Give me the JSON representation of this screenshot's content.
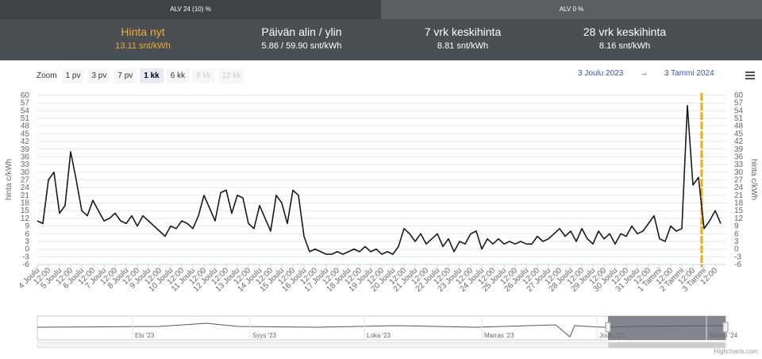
{
  "tabs": [
    "ALV 24 (10) %",
    "ALV 0 %"
  ],
  "stats": [
    {
      "label": "Hinta nyt",
      "value": "13.11 snt/kWh"
    },
    {
      "label": "Päivän alin / ylin",
      "value": "5.86 / 59.90 snt/kWh"
    },
    {
      "label": "7 vrk keskihinta",
      "value": "8.81 snt/kWh"
    },
    {
      "label": "28 vrk keskihinta",
      "value": "8.16 snt/kWh"
    }
  ],
  "zoom": {
    "label": "Zoom",
    "buttons": [
      "1 pv",
      "3 pv",
      "7 pv",
      "1 kk",
      "6 kk",
      "9 kk",
      "12 kk"
    ]
  },
  "range": {
    "from": "3 Joulu 2023",
    "arrow": "→",
    "to": "3 Tammi 2024"
  },
  "chart_data": {
    "type": "line",
    "categories": [
      "4 Joulu",
      null,
      "12:00",
      null,
      "5 Joulu",
      null,
      "12:00",
      null,
      "6 Joulu",
      null,
      "12:00",
      null,
      "7 Joulu",
      null,
      "12:00",
      null,
      "8 Joulu",
      null,
      "12:00",
      null,
      "9 Joulu",
      null,
      "12:00",
      null,
      "10 Joulu",
      null,
      "12:00",
      null,
      "11 Joulu",
      null,
      "12:00",
      null,
      "12 Joulu",
      null,
      "12:00",
      null,
      "13 Joulu",
      null,
      "12:00",
      null,
      "14 Joulu",
      null,
      "12:00",
      null,
      "15 Joulu",
      null,
      "12:00",
      null,
      "16 Joulu",
      null,
      "12:00",
      null,
      "17 Joulu",
      null,
      "12:00",
      null,
      "18 Joulu",
      null,
      "12:00",
      null,
      "19 Joulu",
      null,
      "12:00",
      null,
      "20 Joulu",
      null,
      "12:00",
      null,
      "21 Joulu",
      null,
      "12:00",
      null,
      "22 Joulu",
      null,
      "12:00",
      null,
      "23 Joulu",
      null,
      "12:00",
      null,
      "24 Joulu",
      null,
      "12:00",
      null,
      "25 Joulu",
      null,
      "12:00",
      null,
      "26 Joulu",
      null,
      "12:00",
      null,
      "27 Joulu",
      null,
      "12:00",
      null,
      "28 Joulu",
      null,
      "12:00",
      null,
      "29 Joulu",
      null,
      "12:00",
      null,
      "30 Joulu",
      null,
      "12:00",
      null,
      "31 Joulu",
      null,
      "12:00",
      null,
      "1 Tammi",
      null,
      "12:00",
      null,
      "2 Tammi",
      null,
      "12:00",
      null,
      "3 Tammi",
      null,
      "12:00",
      null
    ],
    "values": [
      11,
      10,
      27,
      30,
      14,
      17,
      38,
      27,
      15,
      13,
      19,
      15,
      11,
      12,
      14,
      11,
      10,
      13,
      9,
      13,
      11,
      9,
      7,
      5,
      9,
      8,
      11,
      10,
      8,
      13,
      21,
      16,
      11,
      22,
      23,
      14,
      21,
      20,
      10,
      8,
      17,
      12,
      7,
      21,
      18,
      10,
      23,
      21,
      5,
      -1,
      0,
      -1,
      -2,
      -2,
      -1,
      -2,
      -1,
      0,
      -1,
      1,
      -1,
      0,
      -2,
      -1,
      -2,
      1,
      8,
      6,
      3,
      6,
      2,
      4,
      6,
      1,
      4,
      -1,
      3,
      2,
      6,
      7,
      0,
      4,
      2,
      4,
      2,
      3,
      2,
      3,
      2,
      2,
      5,
      3,
      4,
      6,
      8,
      5,
      7,
      3,
      8,
      4,
      2,
      7,
      4,
      6,
      2,
      6,
      5,
      9,
      6,
      7,
      10,
      13,
      4,
      3,
      9,
      7,
      8,
      56,
      25,
      28,
      8,
      11,
      15,
      10
    ],
    "color": "#1a1a1a",
    "ylabel": "hinta c/kWh",
    "ylim": [
      -6,
      60
    ],
    "yticks": [
      -6,
      -3,
      0,
      3,
      6,
      9,
      12,
      15,
      18,
      21,
      24,
      27,
      30,
      33,
      36,
      39,
      42,
      45,
      48,
      51,
      54,
      57,
      60
    ],
    "grid": true
  },
  "navigator": {
    "labels": [
      "Elo '23",
      "Syys '23",
      "Loka '23",
      "Marras '23",
      "Joulu '23",
      "Tammi '24"
    ]
  },
  "credits": "Highcharts.com"
}
